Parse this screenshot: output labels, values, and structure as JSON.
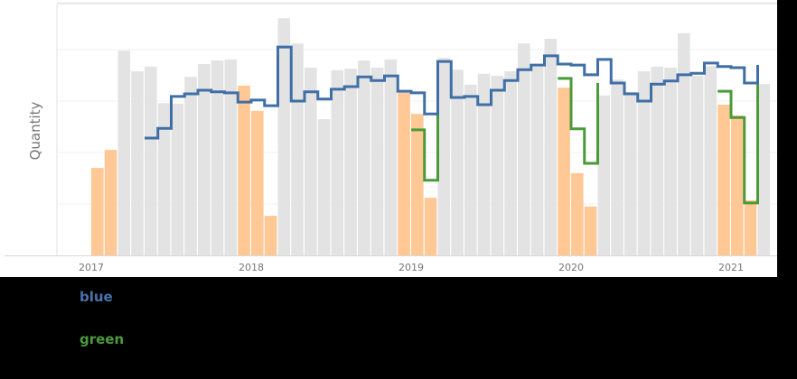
{
  "chart_data": {
    "type": "bar",
    "title": "",
    "xlabel": "",
    "ylabel": "Quantity",
    "ylim": [
      0,
      490
    ],
    "grid": true,
    "gridline_values": [
      100,
      200,
      300,
      400,
      490
    ],
    "x_tick_labels": [
      "2017",
      "2018",
      "2019",
      "2020",
      "2021"
    ],
    "categories": [
      "2017-01",
      "2017-02",
      "2017-03",
      "2017-04",
      "2017-05",
      "2017-06",
      "2017-07",
      "2017-08",
      "2017-09",
      "2017-10",
      "2017-11",
      "2017-12",
      "2018-01",
      "2018-02",
      "2018-03",
      "2018-04",
      "2018-05",
      "2018-06",
      "2018-07",
      "2018-08",
      "2018-09",
      "2018-10",
      "2018-11",
      "2018-12",
      "2019-01",
      "2019-02",
      "2019-03",
      "2019-04",
      "2019-05",
      "2019-06",
      "2019-07",
      "2019-08",
      "2019-09",
      "2019-10",
      "2019-11",
      "2019-12",
      "2020-01",
      "2020-02",
      "2020-03",
      "2020-04",
      "2020-05",
      "2020-06",
      "2020-07",
      "2020-08",
      "2020-09",
      "2020-10",
      "2020-11",
      "2020-12",
      "2021-01",
      "2021-02",
      "2021-03"
    ],
    "bars": {
      "name": "Quantity",
      "values": [
        170,
        205,
        398,
        358,
        367,
        296,
        295,
        347,
        372,
        379,
        381,
        330,
        281,
        77,
        461,
        412,
        365,
        265,
        360,
        363,
        379,
        365,
        381,
        316,
        275,
        112,
        384,
        361,
        332,
        353,
        349,
        358,
        412,
        367,
        421,
        326,
        160,
        95,
        311,
        342,
        318,
        358,
        367,
        365,
        432,
        349,
        368,
        293,
        272,
        107,
        333
      ],
      "highlight": [
        1,
        1,
        0,
        0,
        0,
        0,
        0,
        0,
        0,
        0,
        0,
        1,
        1,
        1,
        0,
        0,
        0,
        0,
        0,
        0,
        0,
        0,
        0,
        1,
        1,
        1,
        0,
        0,
        0,
        0,
        0,
        0,
        0,
        0,
        0,
        1,
        1,
        1,
        0,
        0,
        0,
        0,
        0,
        0,
        0,
        0,
        0,
        1,
        1,
        1,
        0
      ],
      "colors": {
        "default": "#e3e3e3",
        "highlight": "#ffc895"
      }
    },
    "series": [
      {
        "name": "blue",
        "color": "#3f6fa6",
        "type": "step",
        "start_index": 4,
        "values": [
          228,
          247,
          309,
          314,
          321,
          318,
          316,
          298,
          302,
          291,
          405,
          300,
          318,
          304,
          323,
          328,
          347,
          340,
          349,
          319,
          316,
          275,
          377,
          307,
          309,
          293,
          321,
          340,
          361,
          370,
          388,
          372,
          370,
          351,
          381,
          335,
          314,
          300,
          333,
          339,
          351,
          354,
          374,
          367,
          365,
          335,
          370
        ]
      },
      {
        "name": "green",
        "color": "#4a9a3a",
        "type": "step",
        "segments": [
          {
            "start_index": 24,
            "values": [
              244,
              146
            ],
            "end_join": 275
          },
          {
            "start_index": 35,
            "values": [
              344,
              246,
              179
            ],
            "end_join": 335
          },
          {
            "start_index": 47,
            "values": [
              319,
              268,
              102
            ],
            "end_join": 370
          }
        ]
      }
    ]
  },
  "legend": {
    "blue": {
      "label": "blue",
      "color": "#4a72ad"
    },
    "green": {
      "label": "green",
      "color": "#4c9a3e"
    }
  }
}
